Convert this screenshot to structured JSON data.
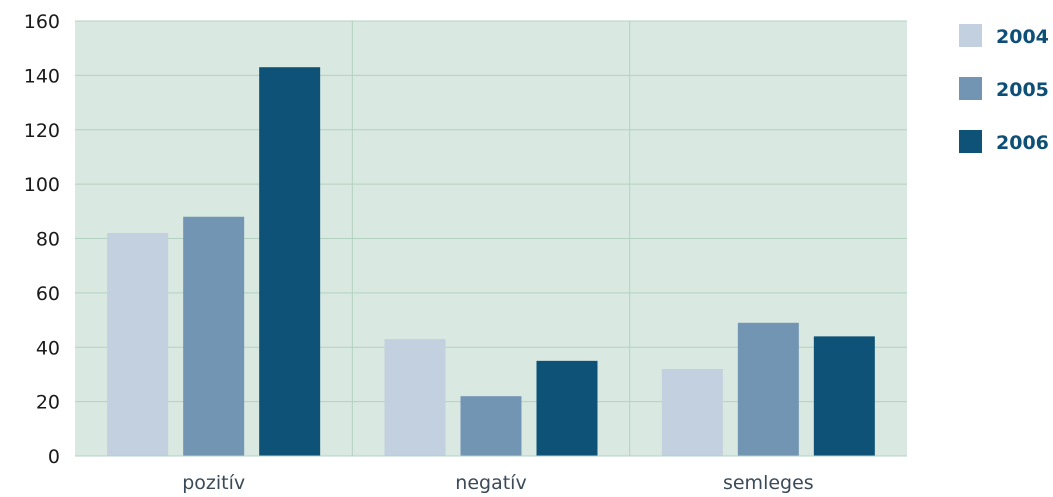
{
  "chart_data": {
    "type": "bar",
    "categories": [
      "pozitív",
      "negatív",
      "semleges"
    ],
    "series": [
      {
        "name": "2004",
        "values": [
          82,
          43,
          32
        ],
        "color": "#c3d0df"
      },
      {
        "name": "2005",
        "values": [
          88,
          22,
          49
        ],
        "color": "#7295b4"
      },
      {
        "name": "2006",
        "values": [
          143,
          35,
          44
        ],
        "color": "#0e5277"
      }
    ],
    "ylim": [
      0,
      160
    ],
    "yticks": [
      "0",
      "20",
      "40",
      "60",
      "80",
      "100",
      "120",
      "140",
      "160"
    ],
    "grid": true,
    "plot_background": "#d9e9e1",
    "grid_color": "#b3d1c0",
    "legend_position": "right"
  }
}
